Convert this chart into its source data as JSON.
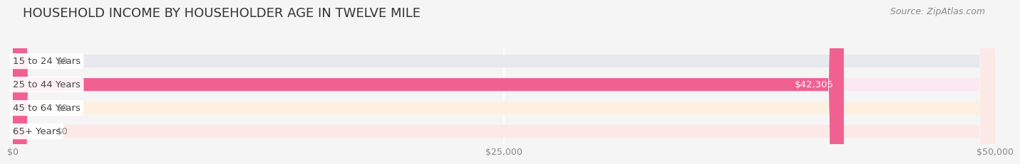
{
  "title": "HOUSEHOLD INCOME BY HOUSEHOLDER AGE IN TWELVE MILE",
  "source": "Source: ZipAtlas.com",
  "categories": [
    "15 to 24 Years",
    "25 to 44 Years",
    "45 to 64 Years",
    "65+ Years"
  ],
  "values": [
    0,
    42305,
    0,
    0
  ],
  "bar_colors": [
    "#a8a8d8",
    "#f06090",
    "#f0c080",
    "#f09090"
  ],
  "bar_bg_colors": [
    "#e8e8f0",
    "#fce8f0",
    "#fdf0e0",
    "#fde8e8"
  ],
  "label_colors": [
    "#888888",
    "#ffffff",
    "#888888",
    "#888888"
  ],
  "value_labels": [
    "$0",
    "$42,305",
    "$0",
    "$0"
  ],
  "xlim": [
    0,
    50000
  ],
  "xtick_values": [
    0,
    25000,
    50000
  ],
  "xtick_labels": [
    "$0",
    "$25,000",
    "$50,000"
  ],
  "background_color": "#f5f5f5",
  "title_fontsize": 13,
  "source_fontsize": 9,
  "bar_height": 0.55,
  "bar_label_fontsize": 9.5,
  "tick_label_fontsize": 9
}
